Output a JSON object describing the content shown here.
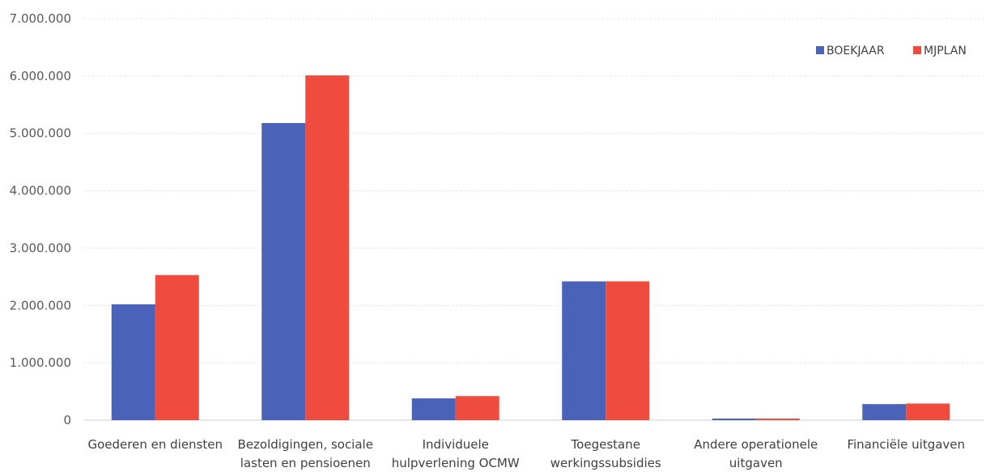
{
  "chart_data": {
    "type": "bar",
    "categories": [
      [
        "Goederen en diensten"
      ],
      [
        "Bezoldigingen, sociale",
        "lasten en pensioenen"
      ],
      [
        "Individuele",
        "hulpverlening OCMW"
      ],
      [
        "Toegestane",
        "werkingssubsidies"
      ],
      [
        "Andere operationele",
        "uitgaven"
      ],
      [
        "Financiële uitgaven"
      ]
    ],
    "series": [
      {
        "name": "BOEKJAAR",
        "color": "#4a62b7",
        "values": [
          2020000,
          5180000,
          380000,
          2420000,
          0,
          280000
        ]
      },
      {
        "name": "MJPLAN",
        "color": "#ef4b3f",
        "values": [
          2530000,
          6010000,
          420000,
          2420000,
          0,
          290000
        ]
      }
    ],
    "yticks": [
      "0",
      "1.000.000",
      "2.000.000",
      "3.000.000",
      "4.000.000",
      "5.000.000",
      "6.000.000",
      "7.000.000"
    ],
    "ylim": [
      0,
      7000000
    ],
    "grid": true,
    "legend_position": "top-right",
    "title": "",
    "xlabel": "",
    "ylabel": ""
  }
}
